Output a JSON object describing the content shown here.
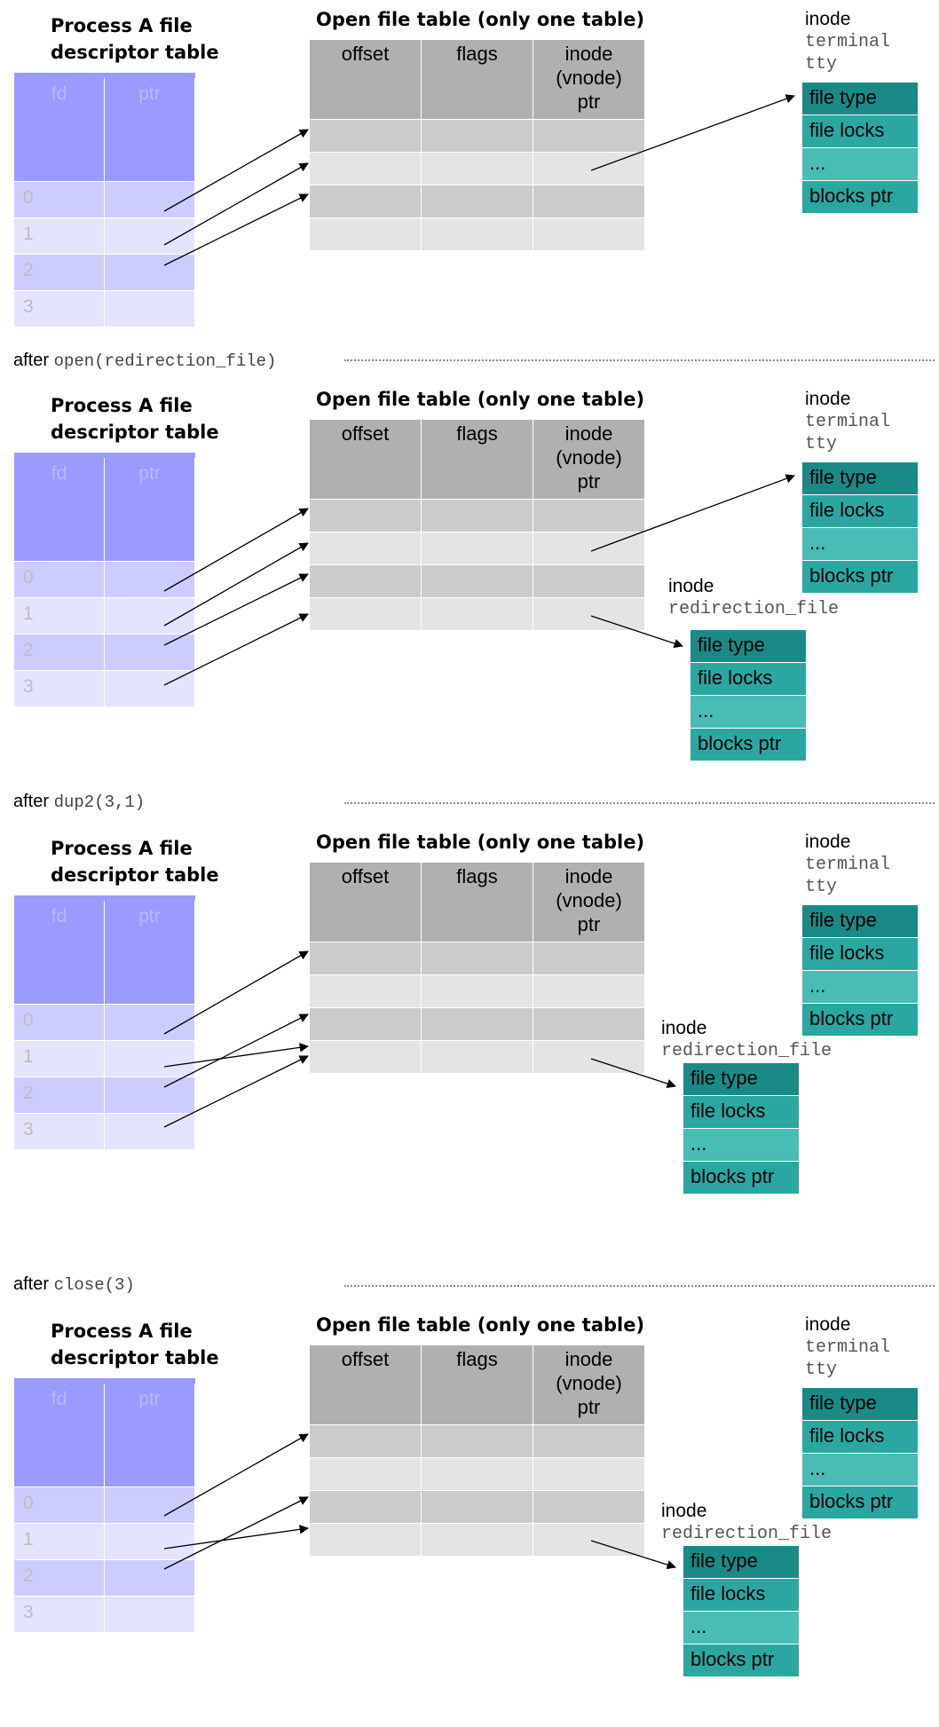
{
  "fd_table": {
    "title_line1": "Process A file",
    "title_line2": "descriptor table",
    "header_fd": "fd",
    "header_ptr": "ptr",
    "rows": [
      "0",
      "1",
      "2",
      "3"
    ]
  },
  "open_file_table": {
    "title": "Open file table (only one table)",
    "col_offset": "offset",
    "col_flags": "flags",
    "col_inode_l1": "inode",
    "col_inode_l2": "(vnode)",
    "col_inode_l3": "ptr"
  },
  "inode_terminal": {
    "label": "inode",
    "name_l1": "terminal",
    "name_l2": "tty"
  },
  "inode_redirection": {
    "label": "inode",
    "name": "redirection_file"
  },
  "inode_rows": [
    "file type",
    "file locks",
    "...",
    "blocks ptr"
  ],
  "steps": [
    {
      "prefix": "after",
      "code": "open(redirection_file)"
    },
    {
      "prefix": "after",
      "code": "dup2(3,1)"
    },
    {
      "prefix": "after",
      "code": "close(3)"
    }
  ],
  "colors": {
    "fd_header": "#9a9aff",
    "fd_row_dark": "#ccccff",
    "fd_row_light": "#e4e4ff",
    "oft_header": "#b0b0b0",
    "oft_row_dark": "#cbcbcb",
    "oft_row_light": "#e4e4e4",
    "inode_dark": "#1a8a86",
    "inode_mid": "#2aa7a1",
    "inode_light": "#49bcb6"
  }
}
